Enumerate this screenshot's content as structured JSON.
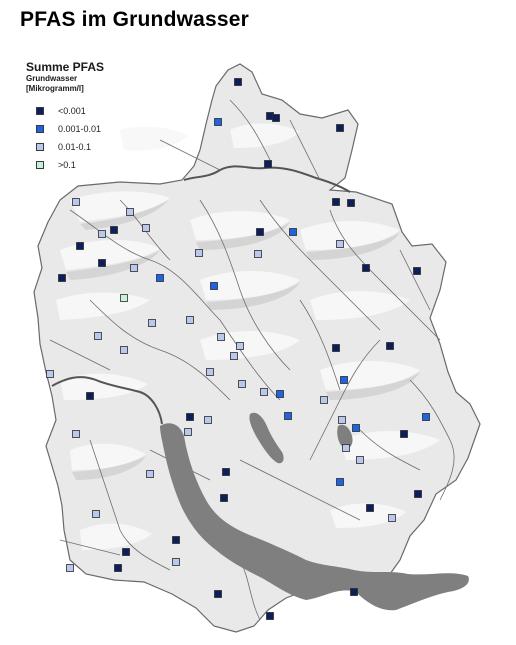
{
  "title": "PFAS im Grundwasser",
  "legend": {
    "title": "Summe PFAS",
    "subtitle": "Grundwasser",
    "unit": "[Mikrogramm/l]",
    "classes": [
      {
        "label": "<0.001",
        "color": "#0c1f5c"
      },
      {
        "label": "0.001-0.01",
        "color": "#1f63e0"
      },
      {
        "label": "0.01-0.1",
        "color": "#b9c8ee"
      },
      {
        "label": ">0.1",
        "color": "#c6f2dc"
      }
    ]
  },
  "map_style": {
    "land_color": "#e9e9e9",
    "relief_color": "#f8f8f8",
    "lake_color": "#7f7f7f",
    "river_color": "#6d6d6d",
    "border_color": "#555555"
  }
}
